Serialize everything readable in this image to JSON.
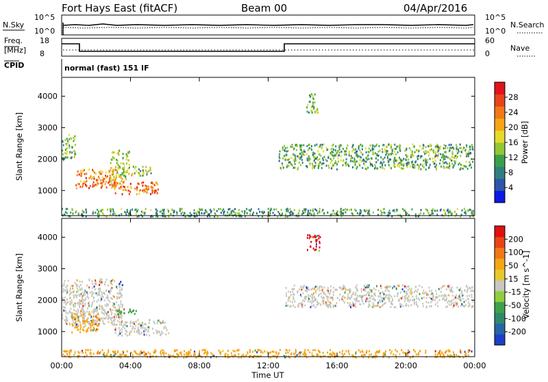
{
  "header": {
    "radar": "Fort Hays East (fitACF)",
    "beam": "Beam 00",
    "date": "04/Apr/2016"
  },
  "top_panels": {
    "nsky_label": "N.Sky",
    "nsky_ticks": [
      "10^5",
      "10^0"
    ],
    "nsearch_label": "N.Search",
    "nsearch_ticks": [
      "10^5",
      "10^0"
    ],
    "freq_label_1": "Freq.",
    "freq_label_2": "[MHz]",
    "freq_ticks": [
      "18",
      "8"
    ],
    "nave_label": "Nave",
    "nave_ticks": [
      "60",
      "0"
    ],
    "cpid_label": "CPID",
    "cpid_value": "normal (fast) 151 IF"
  },
  "chart_data": [
    {
      "type": "heatmap",
      "name": "power",
      "ylabel": "Slant Range [km]",
      "yticks": [
        "1000",
        "2000",
        "3000",
        "4000"
      ],
      "ylim": [
        200,
        4600
      ],
      "colorbar_label": "Power [dB]",
      "colorbar_ticks": [
        "4",
        "8",
        "12",
        "16",
        "20",
        "24",
        "28"
      ],
      "colorbar_colors": [
        "#0a19e6",
        "#2d55aa",
        "#2f7f80",
        "#3ba04a",
        "#93c733",
        "#e6d92a",
        "#f5a516",
        "#f07818",
        "#e8431c",
        "#e0141a"
      ],
      "regions": [
        {
          "t": [
            0.0,
            0.8
          ],
          "r": [
            2000,
            2800
          ],
          "level": 0.4
        },
        {
          "t": [
            0.8,
            3.2
          ],
          "r": [
            1100,
            1700
          ],
          "level": 0.75
        },
        {
          "t": [
            2.8,
            3.9
          ],
          "r": [
            1300,
            2300
          ],
          "level": 0.5
        },
        {
          "t": [
            3.0,
            5.6
          ],
          "r": [
            900,
            1300
          ],
          "level": 0.8
        },
        {
          "t": [
            4.0,
            5.3
          ],
          "r": [
            1500,
            1800
          ],
          "level": 0.45
        },
        {
          "t": [
            12.6,
            23.9
          ],
          "r": [
            1700,
            2500
          ],
          "level": 0.35
        },
        {
          "t": [
            14.2,
            14.9
          ],
          "r": [
            3500,
            4100
          ],
          "level": 0.4
        },
        {
          "t": [
            0.0,
            23.9
          ],
          "r": [
            200,
            450
          ],
          "level": 0.3
        }
      ]
    },
    {
      "type": "heatmap",
      "name": "velocity",
      "ylabel": "Slant Range [km]",
      "yticks": [
        "1000",
        "2000",
        "3000",
        "4000"
      ],
      "ylim": [
        200,
        4600
      ],
      "xlabel": "Time UT",
      "xticks": [
        "00:00",
        "04:00",
        "08:00",
        "12:00",
        "16:00",
        "20:00",
        "00:00"
      ],
      "xlim": [
        0,
        24
      ],
      "colorbar_label": "Velocity [m s^-1]",
      "colorbar_ticks": [
        "200",
        "100",
        "50",
        "15",
        "-15",
        "-50",
        "-100",
        "-200"
      ],
      "colorbar_colors": [
        "#1c3fc8",
        "#2565a8",
        "#2e8a6a",
        "#3fa24a",
        "#8fce3c",
        "#c8c8c0",
        "#e8c82c",
        "#f5a516",
        "#f07818",
        "#e84418",
        "#e01010"
      ],
      "regions": [
        {
          "t": [
            0.0,
            3.5
          ],
          "r": [
            1200,
            2700
          ],
          "color": "#c8c8c0"
        },
        {
          "t": [
            3.0,
            6.2
          ],
          "r": [
            900,
            1400
          ],
          "color": "#c8c8c0"
        },
        {
          "t": [
            3.2,
            4.4
          ],
          "r": [
            1550,
            1750
          ],
          "color": "#3fa24a"
        },
        {
          "t": [
            3.3,
            3.5
          ],
          "r": [
            2500,
            2700
          ],
          "color": "#1c3fc8"
        },
        {
          "t": [
            0.5,
            2.2
          ],
          "r": [
            1000,
            1600
          ],
          "color": "#f5a516"
        },
        {
          "t": [
            13.0,
            23.9
          ],
          "r": [
            1800,
            2500
          ],
          "color": "#c8c8c0"
        },
        {
          "t": [
            14.2,
            15.0
          ],
          "r": [
            3600,
            4100
          ],
          "color": "#e01010"
        },
        {
          "t": [
            0.0,
            23.9
          ],
          "r": [
            200,
            450
          ],
          "color": "#f5a516"
        }
      ]
    }
  ]
}
